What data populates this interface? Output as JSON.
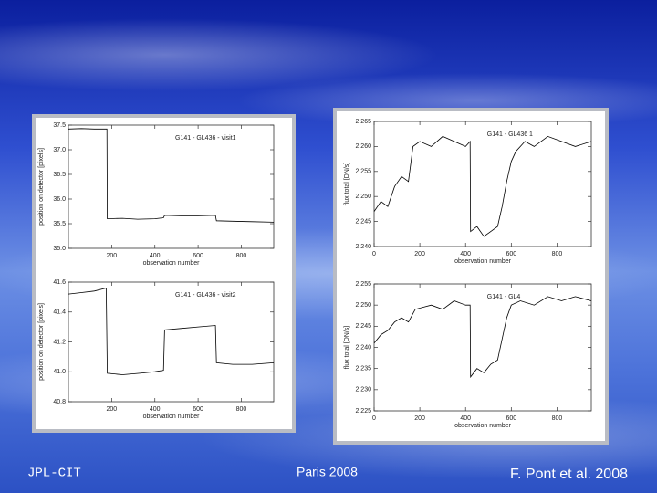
{
  "chart_data": [
    {
      "type": "line",
      "title": "G141 - GL436 - visit1",
      "y_label": "position on detector [pixels]",
      "x_label": "observation number",
      "xlim": [
        0,
        950
      ],
      "xticks": [
        200,
        400,
        600,
        800
      ],
      "ylim": [
        35.0,
        37.5
      ],
      "yticks": [
        {
          "value": 35.0,
          "label": "35.0"
        },
        35.5,
        {
          "value": 36.0,
          "label": "36.0"
        },
        36.5,
        {
          "value": 37.0,
          "label": "37.0"
        },
        37.5
      ],
      "color": "#000000",
      "x": [
        0,
        60,
        120,
        178,
        180,
        250,
        320,
        400,
        440,
        445,
        520,
        600,
        680,
        685,
        760,
        850,
        950
      ],
      "values": [
        37.42,
        37.43,
        37.42,
        37.42,
        35.6,
        35.61,
        35.59,
        35.6,
        35.62,
        35.67,
        35.66,
        35.66,
        35.67,
        35.56,
        35.55,
        35.54,
        35.53
      ]
    },
    {
      "type": "line",
      "title": "G141 - GL436 - visit2",
      "y_label": "position on detector [pixels]",
      "x_label": "observation number",
      "xlim": [
        0,
        950
      ],
      "xticks": [
        200,
        400,
        600,
        800
      ],
      "ylim": [
        40.8,
        41.6
      ],
      "yticks": [
        40.8,
        {
          "value": 41.0,
          "label": "41.0"
        },
        41.2,
        41.4,
        41.6
      ],
      "color": "#000000",
      "x": [
        0,
        60,
        120,
        175,
        180,
        250,
        330,
        400,
        440,
        445,
        520,
        600,
        680,
        685,
        760,
        850,
        950
      ],
      "values": [
        41.52,
        41.53,
        41.54,
        41.56,
        40.99,
        40.98,
        40.99,
        41.0,
        41.01,
        41.28,
        41.29,
        41.3,
        41.31,
        41.06,
        41.05,
        41.05,
        41.06
      ]
    },
    {
      "type": "line",
      "title": "G141 - GL436 1",
      "y_label": "flux total [DN/s]",
      "x_label": "observation number",
      "xlim": [
        0,
        950
      ],
      "xticks": [
        0,
        200,
        400,
        600,
        800
      ],
      "ylim": [
        2.24,
        2.265
      ],
      "yticks": [
        {
          "value": 2.24,
          "label": "2.240"
        },
        2.245,
        {
          "value": 2.25,
          "label": "2.250"
        },
        2.255,
        {
          "value": 2.26,
          "label": "2.260"
        },
        2.265
      ],
      "color": "#000000",
      "x": [
        0,
        30,
        60,
        90,
        120,
        150,
        170,
        200,
        250,
        300,
        350,
        400,
        420,
        422,
        450,
        480,
        510,
        540,
        560,
        580,
        600,
        620,
        660,
        700,
        760,
        820,
        880,
        950
      ],
      "values": [
        2.247,
        2.249,
        2.248,
        2.252,
        2.254,
        2.253,
        2.26,
        2.261,
        2.26,
        2.262,
        2.261,
        2.26,
        2.261,
        2.243,
        2.244,
        2.242,
        2.243,
        2.244,
        2.248,
        2.253,
        2.257,
        2.259,
        2.261,
        2.26,
        2.262,
        2.261,
        2.26,
        2.261
      ]
    },
    {
      "type": "line",
      "title": "G141 - GL4",
      "y_label": "flux total [DN/s]",
      "x_label": "observation number",
      "xlim": [
        0,
        950
      ],
      "xticks": [
        0,
        200,
        400,
        600,
        800
      ],
      "ylim": [
        2.225,
        2.255
      ],
      "yticks": [
        2.225,
        {
          "value": 2.23,
          "label": "2.230"
        },
        2.235,
        {
          "value": 2.24,
          "label": "2.240"
        },
        2.245,
        {
          "value": 2.25,
          "label": "2.250"
        },
        2.255
      ],
      "color": "#000000",
      "x": [
        0,
        30,
        60,
        90,
        120,
        150,
        180,
        250,
        300,
        350,
        400,
        420,
        422,
        450,
        480,
        510,
        540,
        560,
        580,
        600,
        640,
        700,
        760,
        820,
        880,
        950
      ],
      "values": [
        2.241,
        2.243,
        2.244,
        2.246,
        2.247,
        2.246,
        2.249,
        2.25,
        2.249,
        2.251,
        2.25,
        2.25,
        2.233,
        2.235,
        2.234,
        2.236,
        2.237,
        2.242,
        2.247,
        2.25,
        2.251,
        2.25,
        2.252,
        2.251,
        2.252,
        2.251
      ]
    }
  ],
  "footer": {
    "left": "JPL-CIT",
    "center": "Paris 2008",
    "right": "F. Pont et al. 2008"
  }
}
